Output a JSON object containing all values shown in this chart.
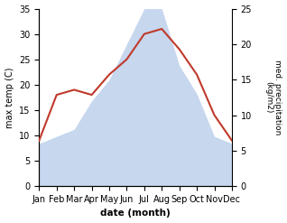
{
  "months": [
    "Jan",
    "Feb",
    "Mar",
    "Apr",
    "May",
    "Jun",
    "Jul",
    "Aug",
    "Sep",
    "Oct",
    "Nov",
    "Dec"
  ],
  "temperature": [
    9,
    18,
    19,
    18,
    22,
    25,
    30,
    31,
    27,
    22,
    14,
    9
  ],
  "precipitation": [
    6,
    7,
    8,
    12,
    15,
    20,
    25,
    25,
    17,
    13,
    7,
    6
  ],
  "temp_color": "#c0392b",
  "precip_color": "#aec6e8",
  "temp_ylim": [
    0,
    35
  ],
  "precip_ylim": [
    0,
    25
  ],
  "ylabel_left": "max temp (C)",
  "ylabel_right": "med. precipitation\n(kg/m2)",
  "xlabel": "date (month)",
  "right_ticks": [
    0,
    5,
    10,
    15,
    20,
    25
  ],
  "left_ticks": [
    0,
    5,
    10,
    15,
    20,
    25,
    30,
    35
  ]
}
